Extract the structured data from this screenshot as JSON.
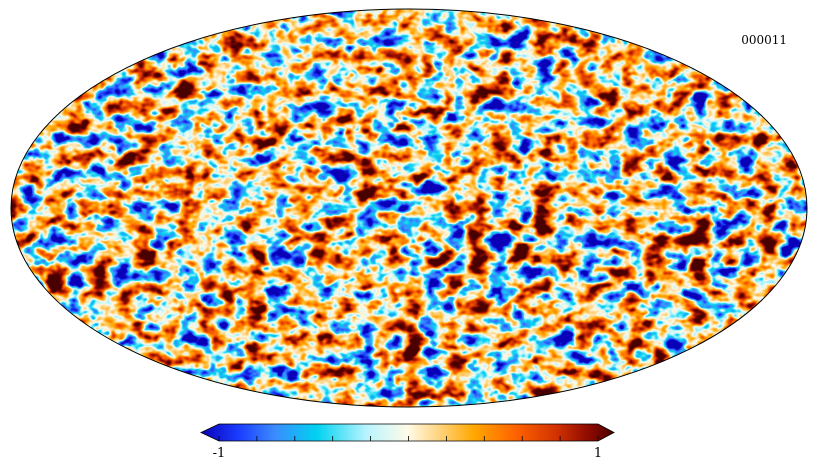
{
  "map": {
    "label": "000011",
    "projection": "mollweide",
    "colormap": [
      "#0a00b8",
      "#1a3cff",
      "#3c8cff",
      "#00d2f0",
      "#b8f4ff",
      "#fffbe8",
      "#ffd27a",
      "#ffa800",
      "#ff6400",
      "#d23200",
      "#8c0a00",
      "#4a0000"
    ]
  },
  "colorbar": {
    "min_label": "-1",
    "max_label": "1",
    "min": -1,
    "max": 1,
    "ticks": 10
  }
}
